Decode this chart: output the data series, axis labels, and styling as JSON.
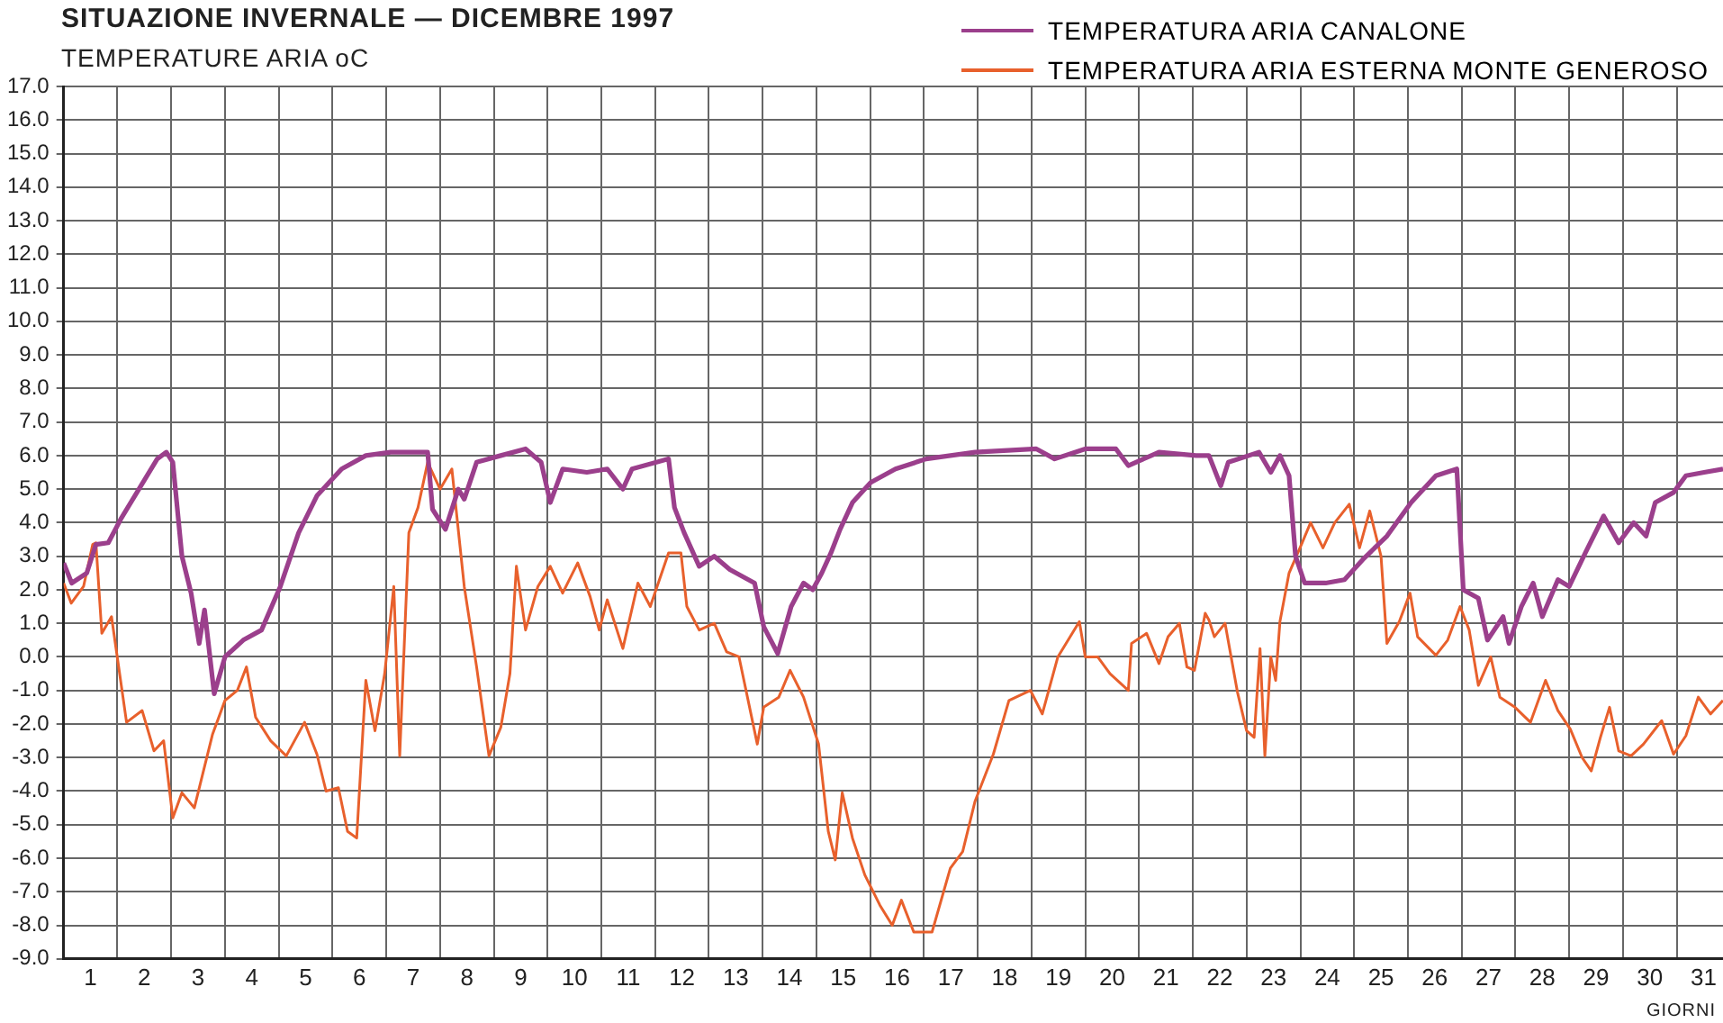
{
  "chart_data": {
    "type": "line",
    "title": "SITUAZIONE INVERNALE — DICEMBRE 1997",
    "ylabel": "TEMPERATURE ARIA oC",
    "xlabel": "GIORNI",
    "xlim": [
      1,
      31.86
    ],
    "xticks": [
      {
        "value": 1,
        "label": null
      },
      {
        "value": 2,
        "label": null
      },
      {
        "value": 3,
        "label": null
      },
      {
        "value": 4,
        "label": null
      },
      {
        "value": 5,
        "label": null
      },
      {
        "value": 6,
        "label": null
      },
      {
        "value": 7,
        "label": null
      },
      {
        "value": 8,
        "label": null
      },
      {
        "value": 9,
        "label": null
      },
      {
        "value": 10,
        "label": null
      },
      {
        "value": 11,
        "label": null
      },
      {
        "value": 12,
        "label": null
      },
      {
        "value": 13,
        "label": null
      },
      {
        "value": 14,
        "label": null
      },
      {
        "value": 15,
        "label": null
      },
      {
        "value": 16,
        "label": null
      },
      {
        "value": 17,
        "label": null
      },
      {
        "value": 18,
        "label": null
      },
      {
        "value": 19,
        "label": null
      },
      {
        "value": 20,
        "label": null
      },
      {
        "value": 21,
        "label": null
      },
      {
        "value": 22,
        "label": null
      },
      {
        "value": 23,
        "label": null
      },
      {
        "value": 24,
        "label": null
      },
      {
        "value": 25,
        "label": null
      },
      {
        "value": 26,
        "label": null
      },
      {
        "value": 27,
        "label": null
      },
      {
        "value": 28,
        "label": null
      },
      {
        "value": 29,
        "label": null
      },
      {
        "value": 30,
        "label": null
      },
      {
        "value": 31,
        "label": null
      },
      {
        "value": 1.5,
        "label": "1"
      },
      {
        "value": 2.5,
        "label": "2"
      },
      {
        "value": 3.5,
        "label": "3"
      },
      {
        "value": 4.5,
        "label": "4"
      },
      {
        "value": 5.5,
        "label": "5"
      },
      {
        "value": 6.5,
        "label": "6"
      },
      {
        "value": 7.5,
        "label": "7"
      },
      {
        "value": 8.5,
        "label": "8"
      },
      {
        "value": 9.5,
        "label": "9"
      },
      {
        "value": 10.5,
        "label": "10"
      },
      {
        "value": 11.5,
        "label": "11"
      },
      {
        "value": 12.5,
        "label": "12"
      },
      {
        "value": 13.5,
        "label": "13"
      },
      {
        "value": 14.5,
        "label": "14"
      },
      {
        "value": 15.5,
        "label": "15"
      },
      {
        "value": 16.5,
        "label": "16"
      },
      {
        "value": 17.5,
        "label": "17"
      },
      {
        "value": 18.5,
        "label": "18"
      },
      {
        "value": 19.5,
        "label": "19"
      },
      {
        "value": 20.5,
        "label": "20"
      },
      {
        "value": 21.5,
        "label": "21"
      },
      {
        "value": 22.5,
        "label": "22"
      },
      {
        "value": 23.5,
        "label": "23"
      },
      {
        "value": 24.5,
        "label": "24"
      },
      {
        "value": 25.5,
        "label": "25"
      },
      {
        "value": 26.5,
        "label": "26"
      },
      {
        "value": 27.5,
        "label": "27"
      },
      {
        "value": 28.5,
        "label": "28"
      },
      {
        "value": 29.5,
        "label": "29"
      },
      {
        "value": 30.5,
        "label": "30"
      },
      {
        "value": 31.5,
        "label": "31"
      }
    ],
    "ylim": [
      -9,
      17
    ],
    "yticks": [
      {
        "value": -9,
        "label": "-9.0"
      },
      {
        "value": -8,
        "label": "-8.0"
      },
      {
        "value": -7,
        "label": "-7.0"
      },
      {
        "value": -6,
        "label": "-6.0"
      },
      {
        "value": -5,
        "label": "-5.0"
      },
      {
        "value": -4,
        "label": "-4.0"
      },
      {
        "value": -3,
        "label": "-3.0"
      },
      {
        "value": -2,
        "label": "-2.0"
      },
      {
        "value": -1,
        "label": "-1.0"
      },
      {
        "value": 0,
        "label": "0.0"
      },
      {
        "value": 1,
        "label": "1.0"
      },
      {
        "value": 2,
        "label": "2.0"
      },
      {
        "value": 3,
        "label": "3.0"
      },
      {
        "value": 4,
        "label": "4.0"
      },
      {
        "value": 5,
        "label": "5.0"
      },
      {
        "value": 6,
        "label": "6.0"
      },
      {
        "value": 7,
        "label": "7.0"
      },
      {
        "value": 8,
        "label": "8.0"
      },
      {
        "value": 9,
        "label": "9.0"
      },
      {
        "value": 10,
        "label": "10.0"
      },
      {
        "value": 11,
        "label": "11.0"
      },
      {
        "value": 12,
        "label": "12.0"
      },
      {
        "value": 13,
        "label": "13.0"
      },
      {
        "value": 14,
        "label": "14.0"
      },
      {
        "value": 15,
        "label": "15.0"
      },
      {
        "value": 16,
        "label": "16.0"
      },
      {
        "value": 17,
        "label": "17.0"
      }
    ],
    "grid": true,
    "legend": "top right",
    "marker": "none",
    "line_style": "solid",
    "series": [
      {
        "name": "TEMPERATURA ARIA CANALONE",
        "color": "#9b3f8c",
        "x": [
          1.0,
          1.15,
          1.43,
          1.6,
          1.83,
          2.06,
          2.4,
          2.74,
          2.91,
          3.03,
          3.2,
          3.37,
          3.52,
          3.62,
          3.8,
          4.0,
          4.34,
          4.68,
          5.03,
          5.37,
          5.71,
          6.17,
          6.62,
          7.08,
          7.77,
          7.86,
          8.1,
          8.34,
          8.45,
          8.68,
          9.13,
          9.59,
          9.88,
          10.05,
          10.28,
          10.73,
          11.11,
          11.4,
          11.57,
          12.25,
          12.36,
          12.54,
          12.82,
          13.1,
          13.39,
          13.85,
          14.02,
          14.28,
          14.53,
          14.76,
          14.93,
          15.1,
          15.27,
          15.44,
          15.67,
          16.01,
          16.47,
          17.04,
          17.95,
          19.09,
          19.43,
          20.0,
          20.57,
          20.8,
          21.37,
          22.06,
          22.3,
          22.52,
          22.66,
          23.23,
          23.45,
          23.62,
          23.79,
          23.91,
          24.08,
          24.47,
          24.82,
          25.16,
          25.61,
          26.06,
          26.52,
          26.91,
          27.03,
          27.31,
          27.48,
          27.77,
          27.88,
          28.11,
          28.33,
          28.5,
          28.79,
          29.0,
          29.3,
          29.64,
          29.92,
          30.2,
          30.43,
          30.6,
          30.94,
          31.17,
          31.51,
          31.86
        ],
        "values": [
          2.8,
          2.2,
          2.5,
          3.35,
          3.4,
          4.1,
          5.0,
          5.9,
          6.1,
          5.8,
          3.0,
          1.9,
          0.4,
          1.4,
          -1.1,
          0.0,
          0.5,
          0.8,
          2.1,
          3.7,
          4.8,
          5.6,
          6.0,
          6.1,
          6.1,
          4.4,
          3.8,
          5.0,
          4.7,
          5.8,
          6.0,
          6.2,
          5.8,
          4.6,
          5.6,
          5.5,
          5.6,
          5.0,
          5.6,
          5.9,
          4.45,
          3.7,
          2.7,
          3.0,
          2.6,
          2.2,
          0.9,
          0.1,
          1.5,
          2.2,
          2.0,
          2.5,
          3.1,
          3.8,
          4.6,
          5.2,
          5.6,
          5.9,
          6.1,
          6.2,
          5.9,
          6.2,
          6.2,
          5.7,
          6.1,
          6.0,
          6.0,
          5.1,
          5.8,
          6.1,
          5.5,
          6.0,
          5.4,
          3.0,
          2.2,
          2.2,
          2.3,
          2.9,
          3.6,
          4.6,
          5.4,
          5.6,
          2.0,
          1.75,
          0.5,
          1.2,
          0.4,
          1.5,
          2.2,
          1.2,
          2.3,
          2.1,
          3.1,
          4.2,
          3.4,
          4.0,
          3.6,
          4.6,
          4.9,
          5.4,
          5.5,
          5.6
        ]
      },
      {
        "name": "TEMPERATURA ARIA ESTERNA MONTE GENEROSO",
        "color": "#e8602c",
        "x": [
          1.0,
          1.14,
          1.37,
          1.54,
          1.6,
          1.71,
          1.89,
          2.17,
          2.46,
          2.68,
          2.86,
          3.03,
          3.2,
          3.43,
          3.77,
          4.0,
          4.23,
          4.4,
          4.57,
          4.85,
          5.14,
          5.48,
          5.71,
          5.88,
          6.11,
          6.28,
          6.45,
          6.62,
          6.79,
          6.97,
          7.14,
          7.25,
          7.42,
          7.59,
          7.77,
          8.0,
          8.22,
          8.45,
          8.68,
          8.91,
          9.13,
          9.3,
          9.42,
          9.59,
          9.82,
          10.05,
          10.28,
          10.56,
          10.79,
          10.96,
          11.11,
          11.4,
          11.68,
          11.91,
          12.25,
          12.48,
          12.59,
          12.82,
          13.1,
          13.33,
          13.56,
          13.9,
          14.02,
          14.3,
          14.51,
          14.76,
          15.04,
          15.22,
          15.35,
          15.48,
          15.67,
          15.9,
          16.18,
          16.41,
          16.58,
          16.81,
          17.15,
          17.49,
          17.72,
          17.95,
          18.29,
          18.58,
          18.98,
          19.2,
          19.49,
          19.89,
          20.0,
          20.23,
          20.46,
          20.8,
          20.86,
          21.14,
          21.37,
          21.54,
          21.75,
          21.89,
          22.03,
          22.23,
          22.3,
          22.4,
          22.6,
          22.83,
          23.0,
          23.14,
          23.25,
          23.34,
          23.45,
          23.54,
          23.62,
          23.79,
          24.02,
          24.19,
          24.42,
          24.64,
          24.91,
          25.1,
          25.29,
          25.5,
          25.61,
          25.84,
          26.04,
          26.18,
          26.52,
          26.74,
          26.97,
          27.14,
          27.31,
          27.54,
          27.71,
          27.99,
          28.28,
          28.56,
          28.79,
          29.02,
          29.24,
          29.41,
          29.58,
          29.75,
          29.92,
          30.15,
          30.38,
          30.72,
          30.94,
          31.17,
          31.4,
          31.63,
          31.86
        ],
        "values": [
          2.2,
          1.6,
          2.1,
          3.35,
          3.4,
          0.7,
          1.2,
          -1.95,
          -1.6,
          -2.8,
          -2.5,
          -4.8,
          -4.05,
          -4.5,
          -2.3,
          -1.3,
          -1.0,
          -0.3,
          -1.8,
          -2.5,
          -2.95,
          -1.95,
          -2.9,
          -4.0,
          -3.9,
          -5.2,
          -5.4,
          -0.7,
          -2.2,
          -0.5,
          2.1,
          -2.95,
          3.7,
          4.45,
          5.8,
          5.0,
          5.6,
          2.1,
          -0.3,
          -2.95,
          -2.1,
          -0.5,
          2.7,
          0.8,
          2.1,
          2.7,
          1.9,
          2.8,
          1.8,
          0.8,
          1.7,
          0.25,
          2.2,
          1.5,
          3.1,
          3.1,
          1.5,
          0.8,
          1.0,
          0.15,
          0.0,
          -2.6,
          -1.5,
          -1.2,
          -0.4,
          -1.2,
          -2.6,
          -5.2,
          -6.05,
          -4.05,
          -5.4,
          -6.5,
          -7.4,
          -8.0,
          -7.25,
          -8.2,
          -8.2,
          -6.3,
          -5.8,
          -4.3,
          -2.9,
          -1.3,
          -1.0,
          -1.7,
          0.0,
          1.05,
          0.0,
          0.0,
          -0.5,
          -1.0,
          0.4,
          0.7,
          -0.2,
          0.6,
          1.0,
          -0.3,
          -0.4,
          1.3,
          1.1,
          0.6,
          1.0,
          -1.05,
          -2.2,
          -2.4,
          0.25,
          -2.95,
          0.0,
          -0.7,
          1.05,
          2.5,
          3.35,
          4.0,
          3.25,
          4.0,
          4.55,
          3.25,
          4.35,
          3.0,
          0.4,
          1.05,
          1.9,
          0.6,
          0.05,
          0.5,
          1.5,
          0.8,
          -0.85,
          0.0,
          -1.2,
          -1.5,
          -1.95,
          -0.7,
          -1.6,
          -2.15,
          -3.0,
          -3.4,
          -2.4,
          -1.5,
          -2.8,
          -2.95,
          -2.6,
          -1.9,
          -2.9,
          -2.35,
          -1.2,
          -1.7,
          -1.3
        ]
      }
    ]
  }
}
